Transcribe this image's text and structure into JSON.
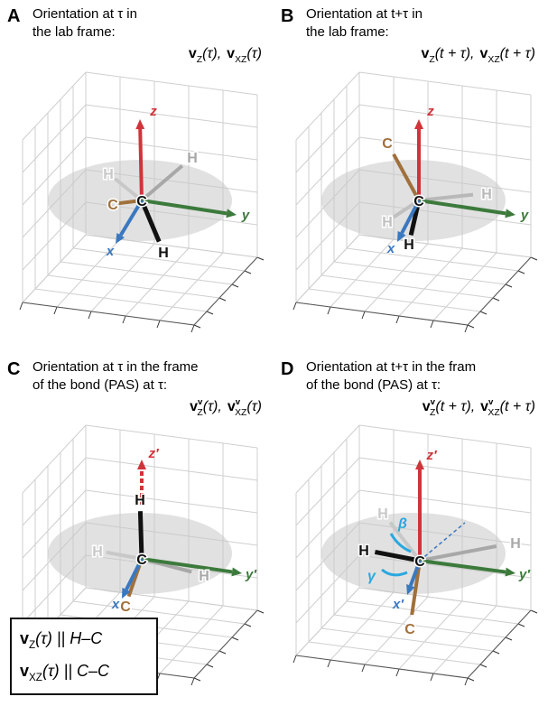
{
  "panels": [
    {
      "letter": "A",
      "title": [
        "Orientation at τ in",
        "the lab frame:"
      ],
      "formula": [
        {
          "v": "v",
          "sub": "Z",
          "arg": "(τ),"
        },
        {
          "v": "v",
          "sub": "XZ",
          "arg": "(τ)"
        }
      ],
      "axes": [
        "z",
        "y",
        "x"
      ],
      "atoms": [
        "C",
        "H",
        "H",
        "C",
        "H"
      ]
    },
    {
      "letter": "B",
      "title": [
        "Orientation at t+τ in",
        "the lab frame:"
      ],
      "formula": [
        {
          "v": "v",
          "sub": "Z",
          "arg": "(t + τ),"
        },
        {
          "v": "v",
          "sub": "XZ",
          "arg": "(t + τ)"
        }
      ],
      "axes": [
        "z",
        "y",
        "x"
      ],
      "atoms": [
        "C",
        "C",
        "H",
        "H",
        "H"
      ]
    },
    {
      "letter": "C",
      "title": [
        "Orientation at τ in the frame",
        "of the bond (PAS) at τ:"
      ],
      "formula": [
        {
          "v": "v",
          "sup": "v",
          "sub": "Z",
          "arg": "(τ),"
        },
        {
          "v": "v",
          "sup": "v",
          "sub": "XZ",
          "arg": "(τ)"
        }
      ],
      "axes": [
        "z′",
        "y′",
        "x"
      ],
      "atoms": [
        "C",
        "H",
        "H",
        "H",
        "C"
      ],
      "note": [
        {
          "v": "v",
          "sub": "Z",
          "arg": "(τ) || H–C"
        },
        {
          "v": "v",
          "sub": "XZ",
          "arg": "(τ) || C–C"
        }
      ]
    },
    {
      "letter": "D",
      "title": [
        "Orientation at t+τ in the fram",
        "of the bond (PAS) at τ:"
      ],
      "formula": [
        {
          "v": "v",
          "sup": "v",
          "sub": "Z",
          "arg": "(t + τ),"
        },
        {
          "v": "v",
          "sup": "v",
          "sub": "XZ",
          "arg": "(t + τ)"
        }
      ],
      "axes": [
        "z′",
        "y′",
        "x′"
      ],
      "atoms": [
        "C",
        "H",
        "H",
        "H",
        "C"
      ],
      "angles": [
        "β",
        "γ"
      ]
    }
  ]
}
